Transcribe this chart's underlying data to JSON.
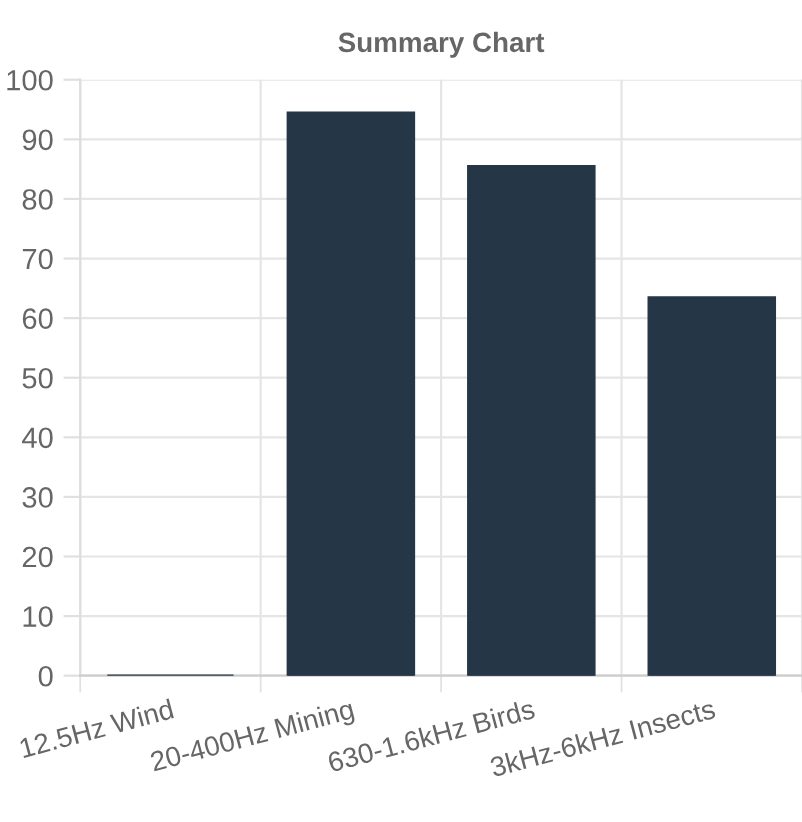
{
  "chart_data": {
    "type": "bar",
    "title": "Summary Chart",
    "categories": [
      "12.5Hz Wind",
      "20-400Hz Mining",
      "630-1.6kHz Birds",
      "3kHz-6kHz Insects"
    ],
    "values": [
      0,
      94.5,
      85.5,
      63.5
    ],
    "color": "#253746",
    "ylim": [
      0,
      100
    ],
    "yticks": [
      0,
      10,
      20,
      30,
      40,
      50,
      60,
      70,
      80,
      90,
      100
    ],
    "grid": true,
    "legend": false
  }
}
